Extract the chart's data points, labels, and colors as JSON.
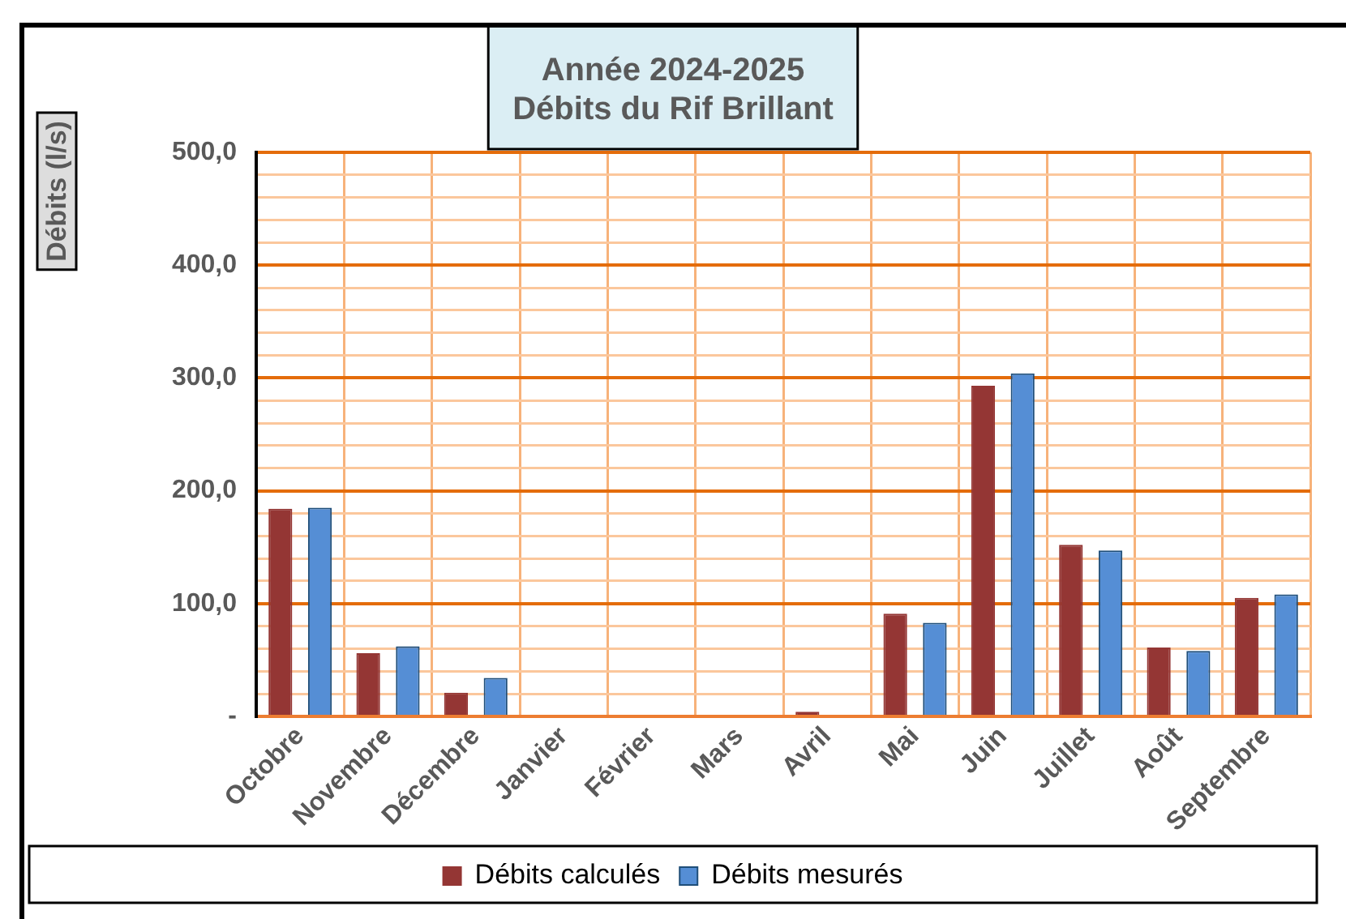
{
  "chart_data": {
    "type": "bar",
    "title": "Année 2024-2025\nDébits du Rif Brillant",
    "ylabel": "Débits (l/s)",
    "categories": [
      "Octobre",
      "Novembre",
      "Décembre",
      "Janvier",
      "Février",
      "Mars",
      "Avril",
      "Mai",
      "Juin",
      "Juillet",
      "Août",
      "Septembre"
    ],
    "series": [
      {
        "name": "Débits calculés",
        "color": "#943634",
        "values": [
          184,
          56,
          21,
          0,
          0,
          0,
          4,
          91,
          293,
          152,
          61,
          105
        ]
      },
      {
        "name": "Débits mesurés",
        "color": "#558ed5",
        "values": [
          185,
          62,
          34,
          0,
          0,
          0,
          0,
          83,
          304,
          147,
          58,
          108
        ]
      }
    ],
    "ylim": [
      0,
      500
    ],
    "yticks": [
      {
        "value": 0,
        "label": "-"
      },
      {
        "value": 20,
        "label": null
      },
      {
        "value": 40,
        "label": null
      },
      {
        "value": 60,
        "label": null
      },
      {
        "value": 80,
        "label": null
      },
      {
        "value": 100,
        "label": "100,0"
      },
      {
        "value": 120,
        "label": null
      },
      {
        "value": 140,
        "label": null
      },
      {
        "value": 160,
        "label": null
      },
      {
        "value": 180,
        "label": null
      },
      {
        "value": 200,
        "label": "200,0"
      },
      {
        "value": 220,
        "label": null
      },
      {
        "value": 240,
        "label": null
      },
      {
        "value": 260,
        "label": null
      },
      {
        "value": 280,
        "label": null
      },
      {
        "value": 300,
        "label": "300,0"
      },
      {
        "value": 320,
        "label": null
      },
      {
        "value": 340,
        "label": null
      },
      {
        "value": 360,
        "label": null
      },
      {
        "value": 380,
        "label": null
      },
      {
        "value": 400,
        "label": "400,0"
      },
      {
        "value": 420,
        "label": null
      },
      {
        "value": 440,
        "label": null
      },
      {
        "value": 460,
        "label": null
      },
      {
        "value": 480,
        "label": null
      },
      {
        "value": 500,
        "label": "500,0"
      }
    ],
    "grid": true,
    "legend": "bottom"
  }
}
